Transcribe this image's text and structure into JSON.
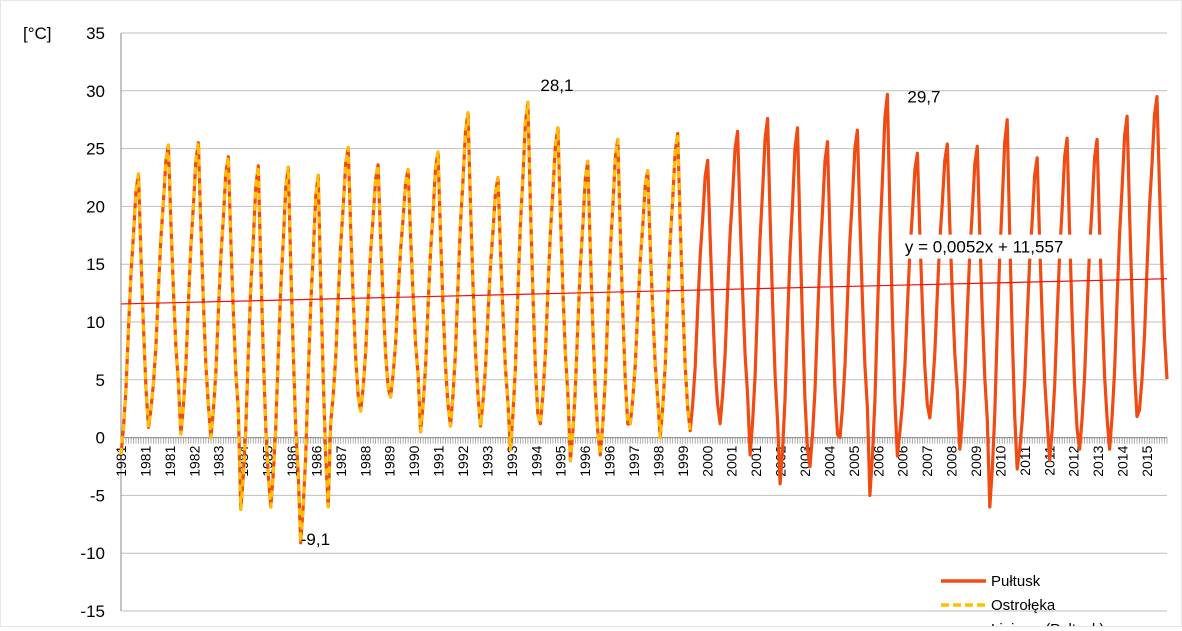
{
  "chart_data": {
    "type": "line",
    "y_unit_label": "[°C]",
    "ylim": [
      -15,
      35
    ],
    "yticks": [
      35,
      30,
      25,
      20,
      15,
      10,
      5,
      0,
      -5,
      -10,
      -15
    ],
    "x_start_year": 1981,
    "x_end_year": 2015,
    "x_tick_labels": [
      "1981",
      "1981",
      "1981",
      "1982",
      "1983",
      "1984",
      "1985",
      "1986",
      "1986",
      "1987",
      "1988",
      "1989",
      "1990",
      "1991",
      "1992",
      "1993",
      "1993",
      "1994",
      "1995",
      "1996",
      "1996",
      "1997",
      "1998",
      "1999",
      "2000",
      "2001",
      "2001",
      "2002",
      "2003",
      "2004",
      "2005",
      "2006",
      "2006",
      "2007",
      "2008",
      "2009",
      "2010",
      "2011",
      "2011",
      "2012",
      "2013",
      "2014",
      "2015"
    ],
    "grid": true,
    "legend_position": "bottom-right",
    "colors": {
      "pultusk": "#f04b12",
      "ostroleka": "#ffc000",
      "trend": "#ee1111"
    },
    "series": [
      {
        "name": "Pułtusk",
        "style": "solid-thick",
        "monthly_pattern": [
          -2.0,
          0.5,
          4.0,
          9.5,
          14.5,
          18.0,
          22.0,
          23.5,
          16.0,
          9.5,
          4.0,
          0.5
        ],
        "peaks": {
          "1981": 22.8,
          "1982": 25.3,
          "1983": 25.5,
          "1984": 24.3,
          "1985": 23.5,
          "1986": 23.4,
          "1987": 22.7,
          "1988": 25.1,
          "1989": 23.6,
          "1990": 23.2,
          "1991": 24.7,
          "1992": 28.1,
          "1993": 22.5,
          "1994": 29.0,
          "1995": 26.8,
          "1996": 23.9,
          "1997": 25.8,
          "1998": 23.1,
          "1999": 26.3,
          "2000": 24.0,
          "2001": 26.5,
          "2002": 27.6,
          "2003": 26.8,
          "2004": 25.6,
          "2005": 26.6,
          "2006": 29.7,
          "2007": 24.6,
          "2008": 25.4,
          "2009": 25.2,
          "2010": 27.5,
          "2011": 24.2,
          "2012": 25.9,
          "2013": 25.8,
          "2014": 27.8,
          "2015": 29.5
        },
        "troughs": {
          "1981": -1.5,
          "1982": 2.5,
          "1983": 0.3,
          "1984": 0.0,
          "1985": -6.2,
          "1986": -6.0,
          "1987": -9.1,
          "1988": 1.3,
          "1989": 2.3,
          "1990": 3.5,
          "1991": 0.5,
          "1992": 1.0,
          "1993": 1.0,
          "1994": -1.0,
          "1995": 1.2,
          "1996": -2.0,
          "1997": -1.5,
          "1998": 1.2,
          "1999": 0.0,
          "2000": 0.6,
          "2001": 1.2,
          "2002": -1.5,
          "2003": -4.0,
          "2004": -2.5,
          "2005": 0.0,
          "2006": -5.0,
          "2007": 0.5,
          "2008": 1.7,
          "2009": -1.0,
          "2010": -6.0,
          "2011": -1.0,
          "2012": -2.0,
          "2013": -1.0,
          "2014": -1.0,
          "2015": 2.4
        }
      },
      {
        "name": "Ostrołęka",
        "style": "dashed",
        "end_year": 2000,
        "end_month": 0
      },
      {
        "name": "Liniowy (Pułtusk)",
        "style": "trendline",
        "slope": 0.0052,
        "intercept": 11.557
      }
    ],
    "annotations": [
      {
        "text": "28,1",
        "year": 1995,
        "month": 0,
        "y": 30.0
      },
      {
        "text": "29,7",
        "year": 2007,
        "month": 3,
        "y": 29.0
      },
      {
        "text": "-9,1",
        "year": 1987,
        "month": 0,
        "y": -9.3
      },
      {
        "text": "y = 0,0052x + 11,557",
        "year": 2007,
        "month": 2,
        "y": 16.0
      }
    ],
    "legend": [
      "Pułtusk",
      "Ostrołęka",
      "Liniowy (Pułtusk)"
    ]
  }
}
